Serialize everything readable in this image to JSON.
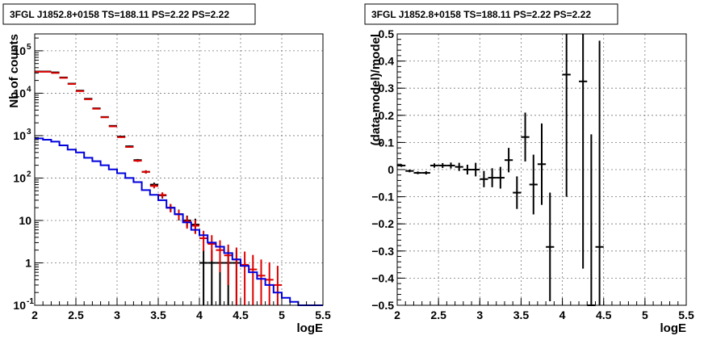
{
  "colors": {
    "data": "#000000",
    "total_model": "#dd0000",
    "source_model": "#0000dd",
    "grid": "#777777"
  },
  "chart_data": [
    {
      "type": "line",
      "title": "3FGL J1852.8+0158 TS=188.11 PS=2.22 PS=2.22",
      "xlabel": "logE",
      "ylabel": "Nb of counts",
      "yscale": "log",
      "xlim": [
        2,
        5.5
      ],
      "ylim": [
        0.1,
        250000
      ],
      "grid": true,
      "x_ticks": [
        {
          "value": 2,
          "label": "2"
        },
        {
          "value": 2.5,
          "label": "2.5"
        },
        {
          "value": 3,
          "label": "3"
        },
        {
          "value": 3.5,
          "label": "3.5"
        },
        {
          "value": 4,
          "label": "4"
        },
        {
          "value": 4.5,
          "label": "4.5"
        },
        {
          "value": 5,
          "label": "5"
        },
        {
          "value": 5.5,
          "label": "5.5"
        }
      ],
      "y_ticks": [
        {
          "value": 0.1,
          "label": "10",
          "exp": "-1"
        },
        {
          "value": 1,
          "label": "1",
          "exp": ""
        },
        {
          "value": 10,
          "label": "10",
          "exp": ""
        },
        {
          "value": 100,
          "label": "10",
          "exp": "2"
        },
        {
          "value": 1000,
          "label": "10",
          "exp": "3"
        },
        {
          "value": 10000,
          "label": "10",
          "exp": "4"
        },
        {
          "value": 100000,
          "label": "10",
          "exp": "5"
        }
      ],
      "bin_width": 0.1,
      "series": [
        {
          "style": "data-crosses",
          "color": "#000000",
          "x": [
            2.05,
            2.15,
            2.25,
            2.35,
            2.45,
            2.55,
            2.65,
            2.75,
            2.85,
            2.95,
            3.05,
            3.15,
            3.25,
            3.35,
            3.45,
            3.55,
            3.65,
            3.75,
            3.85,
            3.95,
            4.05,
            4.15,
            4.25,
            4.35,
            4.45,
            4.55,
            4.65,
            4.75,
            4.85,
            4.95
          ],
          "y": [
            32500,
            32500,
            31000,
            23500,
            16800,
            11500,
            7400,
            4400,
            2750,
            1700,
            950,
            560,
            265,
            140,
            70,
            39,
            20,
            14,
            10,
            8,
            1,
            1,
            1,
            1,
            1,
            0,
            0,
            0,
            0,
            0
          ],
          "y_err": [
            180,
            180,
            176,
            153,
            130,
            107,
            86,
            66,
            52,
            41,
            31,
            24,
            16,
            12,
            8,
            6,
            4,
            4,
            3,
            3,
            1,
            1,
            1,
            1,
            1,
            0,
            0,
            0,
            0,
            0
          ]
        },
        {
          "style": "data-crosses",
          "color": "#dd0000",
          "x": [
            2.05,
            2.15,
            2.25,
            2.35,
            2.45,
            2.55,
            2.65,
            2.75,
            2.85,
            2.95,
            3.05,
            3.15,
            3.25,
            3.35,
            3.45,
            3.55,
            3.65,
            3.75,
            3.85,
            3.95,
            4.05,
            4.15,
            4.25,
            4.35,
            4.45,
            4.55,
            4.65,
            4.75,
            4.85,
            4.95
          ],
          "y": [
            32000,
            32000,
            30000,
            23000,
            16500,
            11200,
            7200,
            4300,
            2700,
            1650,
            920,
            540,
            255,
            140,
            65,
            40,
            20,
            14,
            9.5,
            7.5,
            3.8,
            2.8,
            2,
            1.5,
            1.2,
            0.9,
            0.7,
            0.5,
            0.4,
            0.3
          ],
          "y_err": [
            179,
            179,
            173,
            152,
            128,
            106,
            85,
            66,
            52,
            41,
            30,
            23,
            16,
            12,
            8,
            6,
            4.5,
            3.7,
            3.1,
            2.7,
            1.9,
            1.7,
            1.4,
            1.2,
            1.1,
            0.95,
            0.84,
            0.7,
            0.63,
            0.55
          ]
        },
        {
          "style": "step",
          "color": "#0000dd",
          "x": [
            2.05,
            2.15,
            2.25,
            2.35,
            2.45,
            2.55,
            2.65,
            2.75,
            2.85,
            2.95,
            3.05,
            3.15,
            3.25,
            3.35,
            3.45,
            3.55,
            3.65,
            3.75,
            3.85,
            3.95,
            4.05,
            4.15,
            4.25,
            4.35,
            4.45,
            4.55,
            4.65,
            4.75,
            4.85,
            4.95,
            5.05,
            5.15,
            5.25,
            5.35,
            5.45
          ],
          "y": [
            860,
            800,
            720,
            590,
            470,
            400,
            300,
            250,
            200,
            160,
            130,
            100,
            80,
            52,
            40,
            30,
            20,
            14,
            9,
            6,
            4.5,
            3,
            2.4,
            1.7,
            1.2,
            0.85,
            0.6,
            0.42,
            0.3,
            0.2,
            0.15,
            0.12,
            0.1,
            0.1,
            0.1
          ]
        }
      ]
    },
    {
      "type": "scatter",
      "title": "3FGL J1852.8+0158 TS=188.11 PS=2.22 PS=2.22",
      "xlabel": "logE",
      "ylabel": "(data-model)/model",
      "xlim": [
        2,
        5.5
      ],
      "ylim": [
        -0.5,
        0.5
      ],
      "grid": true,
      "x_ticks": [
        {
          "value": 2,
          "label": "2"
        },
        {
          "value": 2.5,
          "label": "2.5"
        },
        {
          "value": 3,
          "label": "3"
        },
        {
          "value": 3.5,
          "label": "3.5"
        },
        {
          "value": 4,
          "label": "4"
        },
        {
          "value": 4.5,
          "label": "4.5"
        },
        {
          "value": 5,
          "label": "5"
        },
        {
          "value": 5.5,
          "label": "5.5"
        }
      ],
      "y_ticks": [
        {
          "value": -0.5,
          "label": "−0.5"
        },
        {
          "value": -0.4,
          "label": "−0.4"
        },
        {
          "value": -0.3,
          "label": "−0.3"
        },
        {
          "value": -0.2,
          "label": "−0.2"
        },
        {
          "value": -0.1,
          "label": "−0.1"
        },
        {
          "value": 0,
          "label": "0"
        },
        {
          "value": 0.1,
          "label": "0.1"
        },
        {
          "value": 0.2,
          "label": "0.2"
        },
        {
          "value": 0.3,
          "label": "0.3"
        },
        {
          "value": 0.4,
          "label": "0.4"
        },
        {
          "value": 0.5,
          "label": "0.5"
        }
      ],
      "bin_width": 0.1,
      "series": [
        {
          "style": "data-crosses",
          "color": "#000000",
          "x": [
            2.05,
            2.15,
            2.25,
            2.35,
            2.45,
            2.55,
            2.65,
            2.75,
            2.85,
            2.95,
            3.05,
            3.15,
            3.25,
            3.35,
            3.45,
            3.55,
            3.65,
            3.75,
            3.85,
            4.05,
            4.25,
            4.35,
            4.45
          ],
          "y": [
            0.015,
            -0.005,
            -0.012,
            -0.012,
            0.015,
            0.015,
            0.015,
            0.01,
            0.0,
            0.0,
            -0.035,
            -0.03,
            -0.03,
            0.035,
            -0.085,
            0.12,
            -0.055,
            0.02,
            -0.285,
            0.35,
            0.325,
            -0.5,
            -0.285
          ],
          "y_err": [
            0.005,
            0.005,
            0.005,
            0.006,
            0.008,
            0.009,
            0.011,
            0.015,
            0.018,
            0.025,
            0.03,
            0.035,
            0.04,
            0.045,
            0.06,
            0.09,
            0.11,
            0.15,
            0.2,
            0.45,
            0.69,
            0.63,
            0.76
          ]
        }
      ]
    }
  ]
}
